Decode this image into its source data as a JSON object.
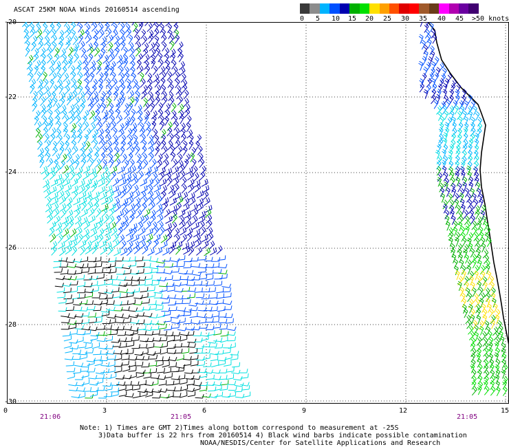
{
  "title": "ASCAT 25KM NOAA Winds 20160514 ascending",
  "legend": {
    "labels": [
      "0",
      "5",
      "10",
      "15",
      "20",
      "25",
      "30",
      "35",
      "40",
      "45",
      ">50 knots"
    ],
    "colors": [
      "#3a3a3a",
      "#8c8c8c",
      "#00b4ff",
      "#0050ff",
      "#0000b0",
      "#00b000",
      "#00e000",
      "#ffe000",
      "#ffa000",
      "#ff5000",
      "#e00000",
      "#ff0000",
      "#a05a2a",
      "#6a3c1a",
      "#ff00ff",
      "#b000b0",
      "#6a00a0",
      "#400070"
    ]
  },
  "axes": {
    "y_ticks": [
      "-20",
      "-22",
      "-24",
      "-26",
      "-28",
      "-30"
    ],
    "x_ticks": [
      "0",
      "3",
      "6",
      "9",
      "12",
      "15"
    ]
  },
  "time_labels": [
    "21:06",
    "21:05",
    "21:05"
  ],
  "notes": [
    "Note: 1) Times are GMT 2)Times along bottom correspond to measurement at -25S",
    "3)Data buffer is 22 hrs from 20160514 4) Black wind barbs indicate possible contamination",
    "NOAA/NESDIS/Center for Satellite Applications and Research"
  ],
  "barb_colors": {
    "dark_blue": "#0000b0",
    "blue": "#0050ff",
    "light_blue": "#00b4ff",
    "cyan": "#00e0e0",
    "green": "#00b000",
    "bright_green": "#00e000",
    "yellow": "#ffe000",
    "black": "#000000"
  },
  "coastline_color": "#000000"
}
